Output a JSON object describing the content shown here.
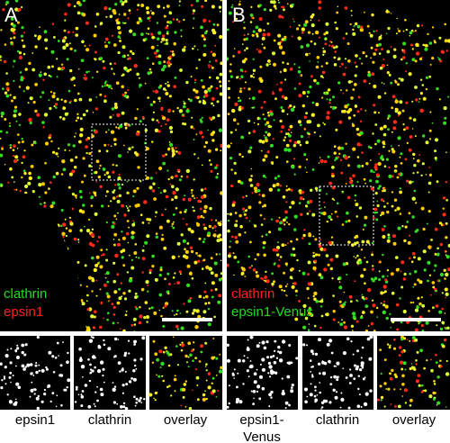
{
  "panels": [
    {
      "label": "A",
      "legend": [
        {
          "text": "clathrin",
          "color": "#22dd22"
        },
        {
          "text": "epsin1",
          "color": "#ff2020"
        }
      ],
      "captions": [
        [
          "epsin1"
        ],
        [
          "clathrin"
        ],
        [
          "overlay"
        ]
      ]
    },
    {
      "label": "B",
      "legend": [
        {
          "text": "clathrin",
          "color": "#ff2020"
        },
        {
          "text": "epsin1-Venus",
          "color": "#22dd22"
        }
      ],
      "captions": [
        [
          "epsin1-",
          "Venus"
        ],
        [
          "clathrin"
        ],
        [
          "overlay"
        ]
      ]
    }
  ]
}
